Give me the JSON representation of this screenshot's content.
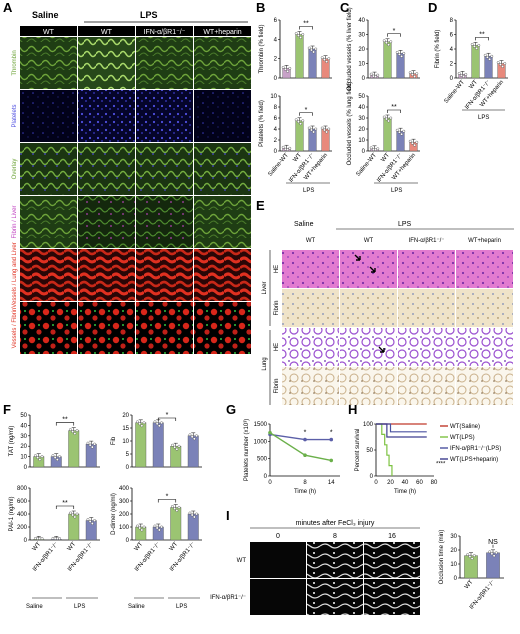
{
  "panelA": {
    "label": "A",
    "group_saline": "Saline",
    "group_lps": "LPS",
    "columns": [
      "WT",
      "WT",
      "IFN-α/βR1⁻/⁻",
      "WT+heparin"
    ],
    "rows": [
      "Thrombin",
      "Platelets",
      "Overlay",
      "Fibrin / Liver",
      "Vessels / Lung and Liver",
      "Vessels / Fibrin"
    ]
  },
  "panelB": {
    "label": "B",
    "charts": [
      {
        "type": "bar",
        "ylabel": "Thrombin (% field)",
        "categories": [
          "Saline-WT",
          "WT",
          "IFN-α/βR1⁻/⁻",
          "WT+heparin"
        ],
        "values": [
          1.0,
          4.5,
          3.0,
          2.0
        ],
        "ylim": [
          0,
          6
        ],
        "yticks": [
          0,
          2,
          4,
          6
        ],
        "sig": "**",
        "colors": [
          "#c8a2c8",
          "#9bc472",
          "#7b82b8",
          "#e8897c"
        ],
        "show_x": false
      },
      {
        "type": "bar",
        "ylabel": "Platelets (% field)",
        "categories": [
          "Saline-WT",
          "WT",
          "IFN-α/βR1⁻/⁻",
          "WT+heparin"
        ],
        "values": [
          0.5,
          5.5,
          4.0,
          4.0
        ],
        "ylim": [
          0,
          10
        ],
        "yticks": [
          0,
          2,
          4,
          6,
          8,
          10
        ],
        "sig": "*",
        "colors": [
          "#c8a2c8",
          "#9bc472",
          "#7b82b8",
          "#e8897c"
        ],
        "show_x": true,
        "x_labels": [
          "Saline-WT",
          "WT",
          "IFN-α/βR1⁻/⁻",
          "WT+heparin"
        ],
        "group": "LPS"
      }
    ]
  },
  "panelC": {
    "label": "C",
    "charts": [
      {
        "type": "bar",
        "ylabel": "Occluded vessels (% liver field)",
        "categories": [
          "Saline-WT",
          "WT",
          "IFN-α/βR1⁻/⁻",
          "WT+heparin"
        ],
        "values": [
          2.0,
          25.0,
          17.0,
          3.0
        ],
        "ylim": [
          0,
          40
        ],
        "yticks": [
          0,
          10,
          20,
          30,
          40
        ],
        "sig": "*",
        "colors": [
          "#c8a2c8",
          "#9bc472",
          "#7b82b8",
          "#e8897c"
        ],
        "show_x": false
      },
      {
        "type": "bar",
        "ylabel": "Occluded vessels (% lung field)",
        "categories": [
          "Saline-WT",
          "WT",
          "IFN-α/βR1⁻/⁻",
          "WT+heparin"
        ],
        "values": [
          2.0,
          30.0,
          18.0,
          8.0
        ],
        "ylim": [
          0,
          50
        ],
        "yticks": [
          0,
          10,
          20,
          30,
          40,
          50
        ],
        "sig": "**",
        "colors": [
          "#c8a2c8",
          "#9bc472",
          "#7b82b8",
          "#e8897c"
        ],
        "show_x": true,
        "x_labels": [
          "Saline-WT",
          "WT",
          "IFN-α/βR1⁻/⁻",
          "WT+heparin"
        ],
        "group": "LPS"
      }
    ]
  },
  "panelD": {
    "label": "D",
    "charts": [
      {
        "type": "bar",
        "ylabel": "Fibrin (% field)",
        "categories": [
          "Saline-WT",
          "WT",
          "IFN-α/βR1⁻/⁻",
          "WT+heparin"
        ],
        "values": [
          0.5,
          4.5,
          3.0,
          2.0
        ],
        "ylim": [
          0,
          8
        ],
        "yticks": [
          0,
          2,
          4,
          6,
          8
        ],
        "sig": "**",
        "colors": [
          "#c8a2c8",
          "#9bc472",
          "#7b82b8",
          "#e8897c"
        ],
        "show_x": true,
        "x_labels": [
          "Saline-WT",
          "WT",
          "IFN-α/βR1⁻/⁻",
          "WT+heparin"
        ],
        "group": "LPS"
      }
    ]
  },
  "panelE": {
    "label": "E",
    "group_saline": "Saline",
    "group_lps": "LPS",
    "columns": [
      "WT",
      "WT",
      "IFN-α/βR1⁻/⁻",
      "WT+heparin"
    ],
    "organ_liver": "Liver",
    "organ_lung": "Lung",
    "stains": [
      "HE",
      "Fibrin",
      "HE",
      "Fibrin"
    ]
  },
  "panelF": {
    "label": "F",
    "charts": [
      {
        "type": "bar",
        "ylabel": "TAT (ng/ml)",
        "categories": [
          "WT",
          "IFN-α/βR1⁻/⁻",
          "WT",
          "IFN-α/βR1⁻/⁻"
        ],
        "values": [
          10,
          10,
          35,
          22
        ],
        "ylim": [
          0,
          50
        ],
        "yticks": [
          0,
          10,
          20,
          30,
          40,
          50
        ],
        "sig": "**",
        "colors": [
          "#9bc472",
          "#7b82b8",
          "#9bc472",
          "#7b82b8"
        ],
        "show_x": false
      },
      {
        "type": "bar",
        "ylabel": "Fib",
        "categories": [
          "WT",
          "IFN-α/βR1⁻/⁻",
          "WT",
          "IFN-α/βR1⁻/⁻"
        ],
        "values": [
          17,
          17,
          8,
          12
        ],
        "ylim": [
          0,
          20
        ],
        "yticks": [
          0,
          5,
          10,
          15,
          20
        ],
        "sig": "*",
        "colors": [
          "#9bc472",
          "#7b82b8",
          "#9bc472",
          "#7b82b8"
        ],
        "show_x": false
      },
      {
        "type": "bar",
        "ylabel": "PAI-1 (ng/ml)",
        "categories": [
          "WT",
          "IFN-α/βR1⁻/⁻",
          "WT",
          "IFN-α/βR1⁻/⁻"
        ],
        "values": [
          10,
          10,
          400,
          300
        ],
        "ylim": [
          0,
          800
        ],
        "yticks": [
          0,
          200,
          400,
          600,
          800
        ],
        "sig": "**",
        "colors": [
          "#9bc472",
          "#7b82b8",
          "#9bc472",
          "#7b82b8"
        ],
        "show_x": true,
        "x_labels": [
          "WT",
          "IFN-α/βR1⁻/⁻",
          "WT",
          "IFN-α/βR1⁻/⁻"
        ]
      },
      {
        "type": "bar",
        "ylabel": "D-dimer (ng/ml)",
        "categories": [
          "WT",
          "IFN-α/βR1⁻/⁻",
          "WT",
          "IFN-α/βR1⁻/⁻"
        ],
        "values": [
          100,
          100,
          250,
          200
        ],
        "ylim": [
          0,
          400
        ],
        "yticks": [
          0,
          100,
          200,
          300,
          400
        ],
        "sig": "*",
        "colors": [
          "#9bc472",
          "#7b82b8",
          "#9bc472",
          "#7b82b8"
        ],
        "show_x": true,
        "x_labels": [
          "WT",
          "IFN-α/βR1⁻/⁻",
          "WT",
          "IFN-α/βR1⁻/⁻"
        ]
      }
    ],
    "group_saline": "Saline",
    "group_lps": "LPS"
  },
  "panelG": {
    "label": "G",
    "chart": {
      "type": "line",
      "ylabel": "Platelets number (x10³)",
      "xlabel": "Time (h)",
      "x": [
        0,
        8,
        14
      ],
      "xticks": [
        0,
        8,
        14
      ],
      "ylim": [
        0,
        1500
      ],
      "yticks": [
        0,
        500,
        1000,
        1500
      ],
      "series": [
        {
          "values": [
            1200,
            1050,
            1050
          ],
          "color": "#5b5fa8"
        },
        {
          "values": [
            1250,
            600,
            450
          ],
          "color": "#6bb04a"
        }
      ],
      "sig_labels": [
        "*",
        "*"
      ]
    }
  },
  "panelH": {
    "label": "H",
    "chart": {
      "type": "line",
      "ylabel": "Percent survival",
      "xlabel": "Time (h)",
      "ylim": [
        0,
        100
      ],
      "yticks": [
        0,
        50,
        100
      ],
      "xlim": [
        0,
        80
      ],
      "xticks": [
        0,
        20,
        40,
        60,
        80
      ],
      "series": [
        {
          "name": "WT(Saline)",
          "color": "#c0392b",
          "points": [
            [
              0,
              100
            ],
            [
              70,
              100
            ]
          ]
        },
        {
          "name": "WT(LPS)",
          "color": "#7dc242",
          "points": [
            [
              0,
              100
            ],
            [
              8,
              100
            ],
            [
              8,
              80
            ],
            [
              12,
              80
            ],
            [
              12,
              60
            ],
            [
              15,
              60
            ],
            [
              15,
              40
            ],
            [
              18,
              40
            ],
            [
              18,
              20
            ],
            [
              22,
              20
            ],
            [
              22,
              0
            ]
          ]
        },
        {
          "name": "IFN-α/βR1⁻/⁻(LPS)",
          "color": "#4b52a0",
          "points": [
            [
              0,
              100
            ],
            [
              20,
              100
            ],
            [
              20,
              85
            ],
            [
              70,
              85
            ]
          ]
        },
        {
          "name": "WT(LPS+heparin)",
          "color": "#3d3d8f",
          "points": [
            [
              0,
              100
            ],
            [
              15,
              100
            ],
            [
              15,
              75
            ],
            [
              70,
              75
            ]
          ]
        }
      ],
      "sig": "****"
    }
  },
  "panelI": {
    "label": "I",
    "title": "minutes after FeCl₃ injury",
    "times": [
      "0",
      "8",
      "16"
    ],
    "rows": [
      "WT",
      "IFN-α/βR1⁻/⁻"
    ],
    "chart": {
      "type": "bar",
      "ylabel": "Occlusion time (min)",
      "categories": [
        "WT",
        "IFN-α/βR1⁻/⁻"
      ],
      "values": [
        16,
        18
      ],
      "ylim": [
        0,
        30
      ],
      "yticks": [
        0,
        10,
        20,
        30
      ],
      "sig": "NS",
      "colors": [
        "#9bc472",
        "#7b82b8"
      ],
      "show_x": true,
      "x_labels": [
        "WT",
        "IFN-α/βR1⁻/⁻"
      ]
    }
  }
}
